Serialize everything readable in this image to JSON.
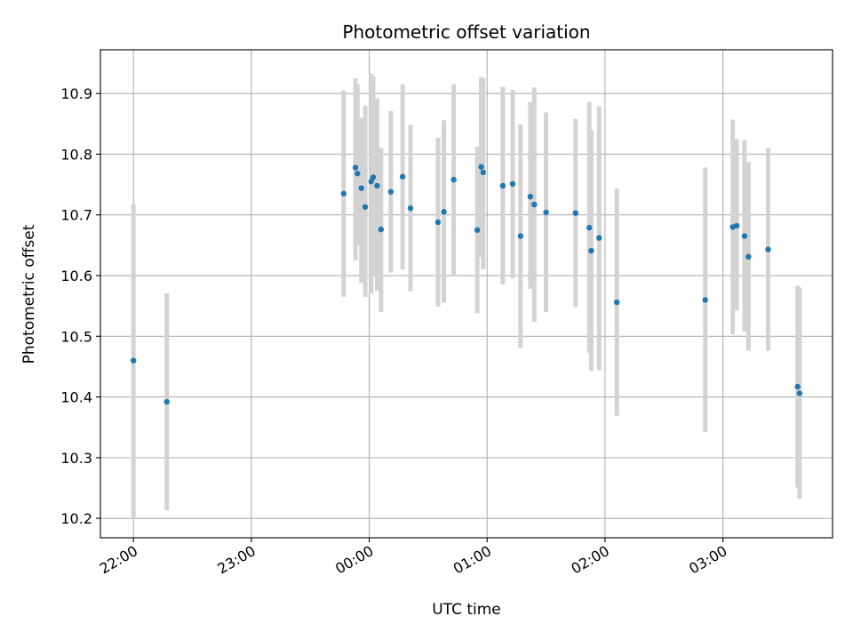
{
  "chart_data": {
    "type": "scatter",
    "title": "Photometric offset variation",
    "xlabel": "UTC time",
    "ylabel": "Photometric offset",
    "x_tick_labels": [
      "22:00",
      "23:00",
      "00:00",
      "01:00",
      "02:00",
      "03:00"
    ],
    "x_ticks_hours": [
      22,
      23,
      24,
      25,
      26,
      27
    ],
    "y_ticks": [
      10.2,
      10.3,
      10.4,
      10.5,
      10.6,
      10.7,
      10.8,
      10.9
    ],
    "y_tick_labels": [
      "10.2",
      "10.3",
      "10.4",
      "10.5",
      "10.6",
      "10.7",
      "10.8",
      "10.9"
    ],
    "xlim_hours": [
      21.72,
      27.93
    ],
    "ylim": [
      10.168,
      10.972
    ],
    "grid": true,
    "colors": {
      "points": "#1f77b4",
      "error_bars": "#d3d3d3"
    },
    "points": [
      {
        "x": "22:00",
        "y": 10.46,
        "ylow": 10.2,
        "yhigh": 10.717
      },
      {
        "x": "22:17",
        "y": 10.392,
        "ylow": 10.213,
        "yhigh": 10.571
      },
      {
        "x": "23:47",
        "y": 10.735,
        "ylow": 10.565,
        "yhigh": 10.905
      },
      {
        "x": "23:53",
        "y": 10.778,
        "ylow": 10.625,
        "yhigh": 10.925
      },
      {
        "x": "23:54",
        "y": 10.768,
        "ylow": 10.65,
        "yhigh": 10.915
      },
      {
        "x": "23:56",
        "y": 10.744,
        "ylow": 10.588,
        "yhigh": 10.86
      },
      {
        "x": "23:58",
        "y": 10.713,
        "ylow": 10.565,
        "yhigh": 10.88
      },
      {
        "x": "00:01",
        "y": 10.755,
        "ylow": 10.57,
        "yhigh": 10.933
      },
      {
        "x": "00:02",
        "y": 10.762,
        "ylow": 10.6,
        "yhigh": 10.928
      },
      {
        "x": "00:04",
        "y": 10.748,
        "ylow": 10.575,
        "yhigh": 10.892
      },
      {
        "x": "00:06",
        "y": 10.676,
        "ylow": 10.54,
        "yhigh": 10.81
      },
      {
        "x": "00:11",
        "y": 10.738,
        "ylow": 10.605,
        "yhigh": 10.871
      },
      {
        "x": "00:17",
        "y": 10.763,
        "ylow": 10.61,
        "yhigh": 10.915
      },
      {
        "x": "00:21",
        "y": 10.711,
        "ylow": 10.574,
        "yhigh": 10.848
      },
      {
        "x": "00:35",
        "y": 10.688,
        "ylow": 10.549,
        "yhigh": 10.827
      },
      {
        "x": "00:38",
        "y": 10.705,
        "ylow": 10.555,
        "yhigh": 10.856
      },
      {
        "x": "00:43",
        "y": 10.758,
        "ylow": 10.6,
        "yhigh": 10.915
      },
      {
        "x": "00:55",
        "y": 10.675,
        "ylow": 10.538,
        "yhigh": 10.812
      },
      {
        "x": "00:57",
        "y": 10.779,
        "ylow": 10.63,
        "yhigh": 10.927
      },
      {
        "x": "00:58",
        "y": 10.77,
        "ylow": 10.61,
        "yhigh": 10.925
      },
      {
        "x": "01:08",
        "y": 10.748,
        "ylow": 10.585,
        "yhigh": 10.911
      },
      {
        "x": "01:13",
        "y": 10.751,
        "ylow": 10.595,
        "yhigh": 10.906
      },
      {
        "x": "01:17",
        "y": 10.665,
        "ylow": 10.481,
        "yhigh": 10.849
      },
      {
        "x": "01:22",
        "y": 10.73,
        "ylow": 10.578,
        "yhigh": 10.886
      },
      {
        "x": "01:24",
        "y": 10.717,
        "ylow": 10.524,
        "yhigh": 10.91
      },
      {
        "x": "01:30",
        "y": 10.704,
        "ylow": 10.54,
        "yhigh": 10.869
      },
      {
        "x": "01:45",
        "y": 10.703,
        "ylow": 10.548,
        "yhigh": 10.858
      },
      {
        "x": "01:52",
        "y": 10.679,
        "ylow": 10.473,
        "yhigh": 10.886
      },
      {
        "x": "01:53",
        "y": 10.641,
        "ylow": 10.443,
        "yhigh": 10.84
      },
      {
        "x": "01:57",
        "y": 10.662,
        "ylow": 10.444,
        "yhigh": 10.879
      },
      {
        "x": "02:06",
        "y": 10.556,
        "ylow": 10.369,
        "yhigh": 10.743
      },
      {
        "x": "02:51",
        "y": 10.56,
        "ylow": 10.342,
        "yhigh": 10.778
      },
      {
        "x": "03:05",
        "y": 10.68,
        "ylow": 10.503,
        "yhigh": 10.857
      },
      {
        "x": "03:07",
        "y": 10.682,
        "ylow": 10.542,
        "yhigh": 10.825
      },
      {
        "x": "03:11",
        "y": 10.665,
        "ylow": 10.508,
        "yhigh": 10.823
      },
      {
        "x": "03:13",
        "y": 10.631,
        "ylow": 10.476,
        "yhigh": 10.787
      },
      {
        "x": "03:23",
        "y": 10.643,
        "ylow": 10.476,
        "yhigh": 10.81
      },
      {
        "x": "03:38",
        "y": 10.417,
        "ylow": 10.251,
        "yhigh": 10.583
      },
      {
        "x": "03:39",
        "y": 10.406,
        "ylow": 10.232,
        "yhigh": 10.58
      }
    ]
  }
}
